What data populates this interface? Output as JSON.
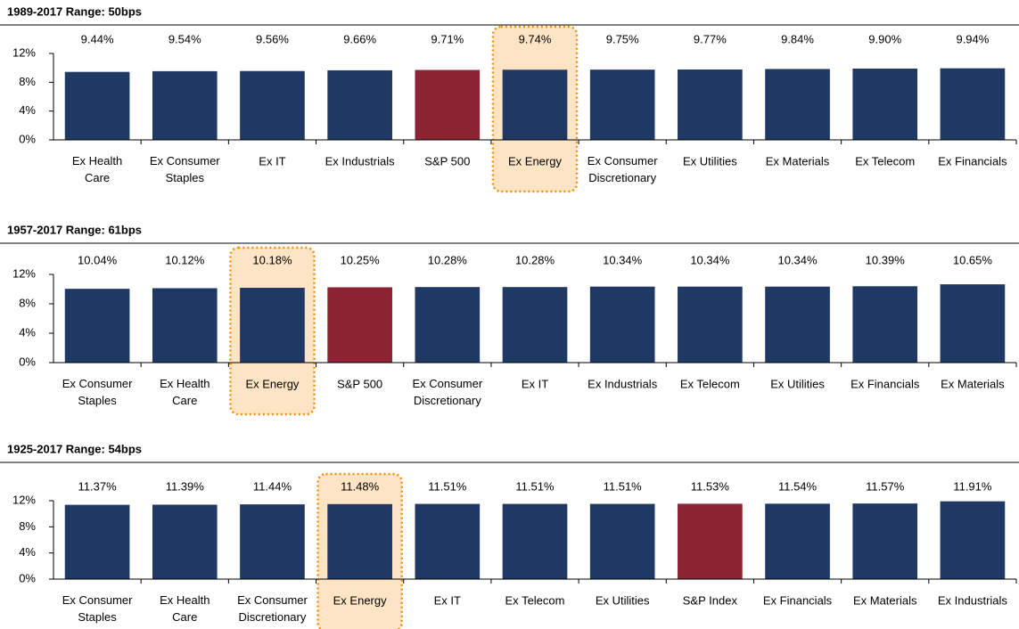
{
  "chart_data": [
    {
      "type": "bar",
      "title": "1989-2017 Range: 50bps",
      "categories": [
        "Ex Health\nCare",
        "Ex Consumer\nStaples",
        "Ex IT",
        "Ex Industrials",
        "S&P 500",
        "Ex Energy",
        "Ex Consumer\nDiscretionary",
        "Ex Utilities",
        "Ex Materials",
        "Ex Telecom",
        "Ex Financials"
      ],
      "values": [
        9.44,
        9.54,
        9.56,
        9.66,
        9.71,
        9.74,
        9.75,
        9.77,
        9.84,
        9.9,
        9.94
      ],
      "value_labels": [
        "9.44%",
        "9.54%",
        "9.56%",
        "9.66%",
        "9.71%",
        "9.74%",
        "9.75%",
        "9.77%",
        "9.84%",
        "9.90%",
        "9.94%"
      ],
      "colors": [
        "#1f3864",
        "#1f3864",
        "#1f3864",
        "#1f3864",
        "#8b2332",
        "#1f3864",
        "#1f3864",
        "#1f3864",
        "#1f3864",
        "#1f3864",
        "#1f3864"
      ],
      "highlight_index": 5,
      "ylim": [
        0,
        12
      ],
      "yticks": [
        {
          "value": 0,
          "label": "0%"
        },
        {
          "value": 4,
          "label": "4%"
        },
        {
          "value": 8,
          "label": "8%"
        },
        {
          "value": 12,
          "label": "12%"
        }
      ]
    },
    {
      "type": "bar",
      "title": "1957-2017 Range: 61bps",
      "categories": [
        "Ex Consumer\nStaples",
        "Ex Health\nCare",
        "Ex Energy",
        "S&P 500",
        "Ex Consumer\nDiscretionary",
        "Ex IT",
        "Ex Industrials",
        "Ex Telecom",
        "Ex Utilities",
        "Ex Financials",
        "Ex Materials"
      ],
      "values": [
        10.04,
        10.12,
        10.18,
        10.25,
        10.28,
        10.28,
        10.34,
        10.34,
        10.34,
        10.39,
        10.65
      ],
      "value_labels": [
        "10.04%",
        "10.12%",
        "10.18%",
        "10.25%",
        "10.28%",
        "10.28%",
        "10.34%",
        "10.34%",
        "10.34%",
        "10.39%",
        "10.65%"
      ],
      "colors": [
        "#1f3864",
        "#1f3864",
        "#1f3864",
        "#8b2332",
        "#1f3864",
        "#1f3864",
        "#1f3864",
        "#1f3864",
        "#1f3864",
        "#1f3864",
        "#1f3864"
      ],
      "highlight_index": 2,
      "ylim": [
        0,
        12
      ],
      "yticks": [
        {
          "value": 0,
          "label": "0%"
        },
        {
          "value": 4,
          "label": "4%"
        },
        {
          "value": 8,
          "label": "8%"
        },
        {
          "value": 12,
          "label": "12%"
        }
      ]
    },
    {
      "type": "bar",
      "title": "1925-2017 Range: 54bps",
      "categories": [
        "Ex Consumer\nStaples",
        "Ex Health\nCare",
        "Ex Consumer\nDiscretionary",
        "Ex Energy",
        "Ex IT",
        "Ex Telecom",
        "Ex Utilities",
        "S&P Index",
        "Ex Financials",
        "Ex Materials",
        "Ex Industrials"
      ],
      "values": [
        11.37,
        11.39,
        11.44,
        11.48,
        11.51,
        11.51,
        11.51,
        11.53,
        11.54,
        11.57,
        11.91
      ],
      "value_labels": [
        "11.37%",
        "11.39%",
        "11.44%",
        "11.48%",
        "11.51%",
        "11.51%",
        "11.51%",
        "11.53%",
        "11.54%",
        "11.57%",
        "11.91%"
      ],
      "colors": [
        "#1f3864",
        "#1f3864",
        "#1f3864",
        "#1f3864",
        "#1f3864",
        "#1f3864",
        "#1f3864",
        "#8b2332",
        "#1f3864",
        "#1f3864",
        "#1f3864"
      ],
      "highlight_index": 3,
      "ylim": [
        0,
        12
      ],
      "yticks": [
        {
          "value": 0,
          "label": "0%"
        },
        {
          "value": 4,
          "label": "4%"
        },
        {
          "value": 8,
          "label": "8%"
        },
        {
          "value": 12,
          "label": "12%"
        }
      ]
    }
  ]
}
